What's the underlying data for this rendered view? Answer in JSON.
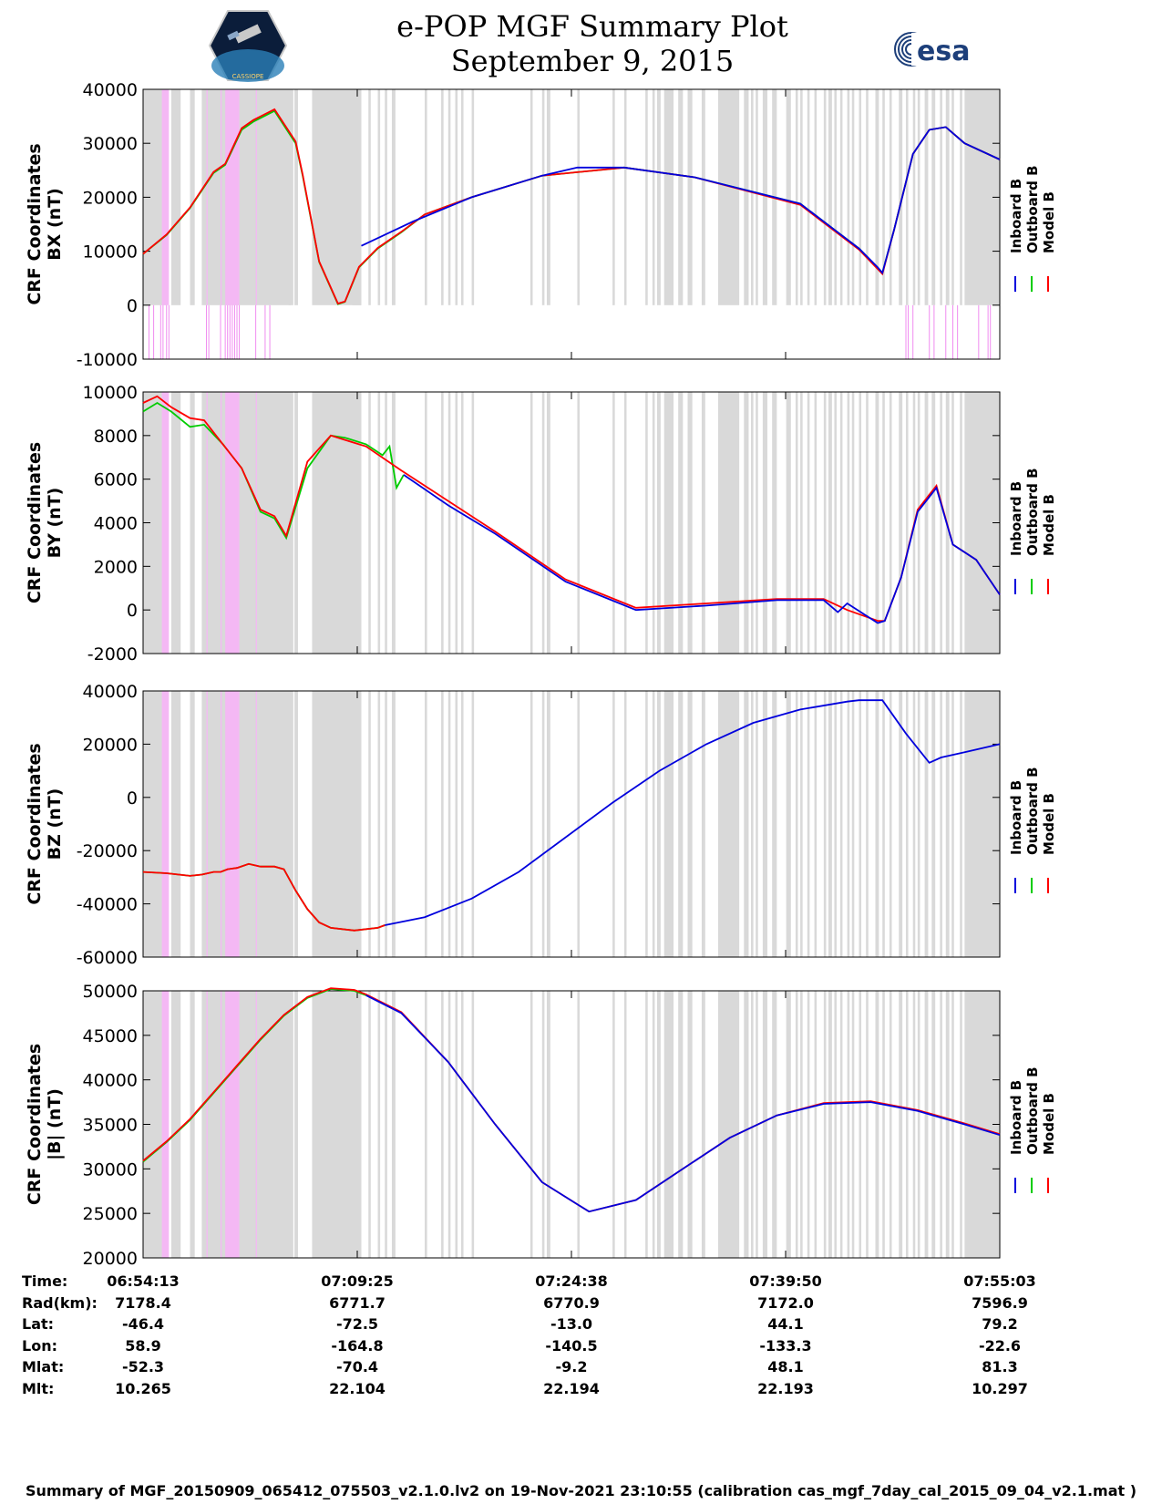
{
  "header": {
    "title": "e-POP MGF Summary Plot",
    "date": "September 9, 2015",
    "logo_left_text": "CASSIOPE",
    "logo_right_text": "esa"
  },
  "colors": {
    "inboard": "#0000dd",
    "outboard": "#00cc00",
    "model": "#ff0000",
    "gap_shade": "#d9d9d9",
    "flag_shade": "#f4b8f4"
  },
  "legend": [
    "Inboard B",
    "Outboard B",
    "Model B"
  ],
  "chart_data": [
    {
      "type": "line",
      "ylabel_line1": "CRF Coordinates",
      "ylabel_line2": "BX (nT)",
      "ylim": [
        -10000,
        40000
      ],
      "yticks": [
        40000,
        30000,
        20000,
        10000,
        0,
        -10000
      ],
      "xlim": [
        0,
        3650
      ],
      "x_unit": "seconds after 06:54:13",
      "series": [
        {
          "name": "Inboard B",
          "x": [
            930,
            1150,
            1400,
            1700,
            1850,
            2050,
            2350,
            2800,
            3050,
            3130,
            3150,
            3200,
            3280,
            3350,
            3420,
            3500,
            3650
          ],
          "values": [
            11000,
            15500,
            20000,
            24000,
            25500,
            25500,
            23700,
            18800,
            10500,
            7000,
            6000,
            14000,
            28000,
            32500,
            33000,
            30000,
            27000
          ]
        },
        {
          "name": "Outboard B",
          "x": [
            0,
            100,
            200,
            300,
            350,
            420,
            470,
            560,
            650,
            680,
            750,
            830,
            860,
            920,
            1000,
            1100,
            1200,
            1400,
            1700,
            2050,
            2350,
            2800,
            3050,
            3150,
            3200,
            3280,
            3350,
            3420,
            3500,
            3650
          ],
          "values": [
            9500,
            13000,
            18000,
            24500,
            26000,
            32500,
            34000,
            36000,
            30000,
            24000,
            8000,
            200,
            600,
            7000,
            10500,
            13500,
            16800,
            20000,
            24000,
            25500,
            23700,
            18800,
            10500,
            6000,
            14000,
            28000,
            32500,
            33000,
            30000,
            27000
          ]
        },
        {
          "name": "Model B",
          "x": [
            0,
            100,
            200,
            300,
            350,
            420,
            470,
            560,
            650,
            680,
            750,
            830,
            860,
            920,
            1000,
            1100,
            1200,
            1400,
            1700,
            2050,
            2350,
            2800,
            3050,
            3150,
            3200,
            3280,
            3350,
            3420,
            3500,
            3650
          ],
          "values": [
            9500,
            13100,
            18100,
            24700,
            26200,
            32800,
            34300,
            36300,
            30300,
            24200,
            8100,
            300,
            700,
            7100,
            10600,
            13600,
            16800,
            20000,
            24000,
            25500,
            23700,
            18600,
            10300,
            5800,
            14000,
            28000,
            32500,
            33000,
            30000,
            27000
          ]
        }
      ]
    },
    {
      "type": "line",
      "ylabel_line1": "CRF Coordinates",
      "ylabel_line2": "BY (nT)",
      "ylim": [
        -2000,
        10000
      ],
      "yticks": [
        10000,
        8000,
        6000,
        4000,
        2000,
        0,
        -2000
      ],
      "xlim": [
        0,
        3650
      ],
      "series": [
        {
          "name": "Inboard B",
          "x": [
            1110,
            1300,
            1500,
            1800,
            2100,
            2400,
            2700,
            2900,
            2960,
            3000,
            3130,
            3160,
            3230,
            3300,
            3380,
            3450,
            3550,
            3650
          ],
          "values": [
            6200,
            4800,
            3500,
            1300,
            0,
            200,
            450,
            450,
            -100,
            300,
            -600,
            -500,
            1500,
            4500,
            5600,
            3000,
            2300,
            700
          ]
        },
        {
          "name": "Outboard B",
          "x": [
            0,
            60,
            120,
            200,
            260,
            340,
            420,
            500,
            560,
            610,
            700,
            800,
            860,
            950,
            1020,
            1050,
            1080,
            1110
          ],
          "values": [
            9100,
            9500,
            9100,
            8400,
            8500,
            7600,
            6500,
            4500,
            4200,
            3300,
            6500,
            8000,
            7900,
            7600,
            7100,
            7500,
            5600,
            6200
          ]
        },
        {
          "name": "Model B",
          "x": [
            0,
            60,
            120,
            200,
            260,
            340,
            420,
            500,
            560,
            610,
            700,
            800,
            860,
            950,
            1100,
            1300,
            1500,
            1800,
            2100,
            2400,
            2700,
            2900,
            3000,
            3130,
            3160,
            3230,
            3300,
            3380,
            3450,
            3550,
            3650
          ],
          "values": [
            9500,
            9800,
            9300,
            8800,
            8700,
            7600,
            6500,
            4600,
            4300,
            3400,
            6800,
            8000,
            7800,
            7500,
            6400,
            5000,
            3600,
            1400,
            100,
            300,
            500,
            500,
            0,
            -500,
            -500,
            1500,
            4600,
            5700,
            3000,
            2300,
            700
          ]
        }
      ]
    },
    {
      "type": "line",
      "ylabel_line1": "CRF Coordinates",
      "ylabel_line2": "BZ (nT)",
      "ylim": [
        -60000,
        40000
      ],
      "yticks": [
        40000,
        20000,
        0,
        -20000,
        -40000,
        -60000
      ],
      "xlim": [
        0,
        3650
      ],
      "series": [
        {
          "name": "Inboard B",
          "x": [
            1030,
            1200,
            1400,
            1600,
            1800,
            2000,
            2200,
            2400,
            2600,
            2800,
            3000,
            3050,
            3150,
            3250,
            3350,
            3400,
            3500,
            3650
          ],
          "values": [
            -48000,
            -45000,
            -38000,
            -28000,
            -15000,
            -2000,
            10000,
            20000,
            28000,
            33000,
            36000,
            36500,
            36500,
            24000,
            13000,
            15000,
            17000,
            20000
          ]
        },
        {
          "name": "Outboard B",
          "x": [
            0,
            100,
            200,
            250,
            300,
            330,
            360,
            400,
            450,
            500,
            560,
            600,
            650,
            700,
            750,
            800,
            900,
            1000,
            1030
          ],
          "values": [
            -28000,
            -28500,
            -29500,
            -29000,
            -28000,
            -28000,
            -27000,
            -26500,
            -25000,
            -26000,
            -26000,
            -27000,
            -35000,
            -42000,
            -47000,
            -49000,
            -50000,
            -49000,
            -48000
          ]
        },
        {
          "name": "Model B",
          "x": [
            0,
            100,
            200,
            250,
            300,
            330,
            360,
            400,
            450,
            500,
            560,
            600,
            650,
            700,
            750,
            800,
            900,
            1000,
            1030
          ],
          "values": [
            -28000,
            -28500,
            -29500,
            -29000,
            -28000,
            -28000,
            -27000,
            -26500,
            -25000,
            -26000,
            -26000,
            -27000,
            -35000,
            -42000,
            -47000,
            -49000,
            -50000,
            -49000,
            -48000
          ]
        }
      ]
    },
    {
      "type": "line",
      "ylabel_line1": "CRF Coordinates",
      "ylabel_line2": "|B| (nT)",
      "ylim": [
        20000,
        50000
      ],
      "yticks": [
        50000,
        45000,
        40000,
        35000,
        30000,
        25000,
        20000
      ],
      "xlim": [
        0,
        3650
      ],
      "series": [
        {
          "name": "Inboard B",
          "x": [
            950,
            1100,
            1300,
            1500,
            1700,
            1900,
            2100,
            2300,
            2500,
            2700,
            2900,
            3100,
            3300,
            3500,
            3650
          ],
          "values": [
            49500,
            47500,
            42000,
            35000,
            28500,
            25200,
            26500,
            30000,
            33500,
            36000,
            37300,
            37500,
            36500,
            35000,
            33800
          ]
        },
        {
          "name": "Outboard B",
          "x": [
            0,
            100,
            200,
            300,
            400,
            500,
            600,
            700,
            800,
            900,
            950
          ],
          "values": [
            30800,
            33000,
            35500,
            38500,
            41500,
            44500,
            47200,
            49200,
            50200,
            50000,
            49500
          ]
        },
        {
          "name": "Model B",
          "x": [
            0,
            100,
            200,
            300,
            400,
            500,
            600,
            700,
            800,
            900,
            950,
            1100,
            1300,
            1500,
            1700,
            1900,
            2100,
            2300,
            2500,
            2700,
            2900,
            3100,
            3300,
            3500,
            3650
          ],
          "values": [
            30900,
            33100,
            35600,
            38600,
            41600,
            44600,
            47300,
            49300,
            50300,
            50100,
            49600,
            47600,
            42000,
            35000,
            28500,
            25200,
            26500,
            30000,
            33500,
            36000,
            37400,
            37600,
            36600,
            35100,
            33900
          ]
        }
      ]
    }
  ],
  "gaps": [
    [
      0,
      100
    ],
    [
      120,
      160
    ],
    [
      200,
      220
    ],
    [
      250,
      630
    ],
    [
      620,
      640
    ],
    [
      645,
      660
    ],
    [
      720,
      930
    ],
    [
      890,
      930
    ],
    [
      960,
      970
    ],
    [
      1000,
      1010
    ],
    [
      1030,
      1040
    ],
    [
      1060,
      1075
    ],
    [
      1200,
      1210
    ],
    [
      1270,
      1280
    ],
    [
      1300,
      1310
    ],
    [
      1330,
      1340
    ],
    [
      1355,
      1365
    ],
    [
      1400,
      1410
    ],
    [
      1650,
      1660
    ],
    [
      1700,
      1710
    ],
    [
      1720,
      1735
    ],
    [
      1850,
      1860
    ],
    [
      2000,
      2010
    ],
    [
      2050,
      2060
    ],
    [
      2140,
      2150
    ],
    [
      2170,
      2180
    ],
    [
      2190,
      2205
    ],
    [
      2220,
      2260
    ],
    [
      2280,
      2300
    ],
    [
      2320,
      2340
    ],
    [
      2380,
      2395
    ],
    [
      2450,
      2540
    ],
    [
      2560,
      2580
    ],
    [
      2590,
      2600
    ],
    [
      2610,
      2620
    ],
    [
      2640,
      2660
    ],
    [
      2680,
      2700
    ],
    [
      2740,
      2760
    ],
    [
      2780,
      2790
    ],
    [
      2800,
      2810
    ],
    [
      2830,
      2840
    ],
    [
      2860,
      2870
    ],
    [
      2900,
      2910
    ],
    [
      2920,
      2935
    ],
    [
      2945,
      2955
    ],
    [
      2970,
      2980
    ],
    [
      3000,
      3010
    ],
    [
      3020,
      3030
    ],
    [
      3050,
      3060
    ],
    [
      3080,
      3090
    ],
    [
      3120,
      3135
    ],
    [
      3150,
      3160
    ],
    [
      3180,
      3190
    ],
    [
      3220,
      3235
    ],
    [
      3250,
      3260
    ],
    [
      3280,
      3290
    ],
    [
      3300,
      3310
    ],
    [
      3330,
      3345
    ],
    [
      3360,
      3375
    ],
    [
      3395,
      3405
    ],
    [
      3420,
      3435
    ],
    [
      3445,
      3455
    ],
    [
      3480,
      3490
    ],
    [
      3500,
      3650
    ]
  ],
  "flags": [
    [
      80,
      110
    ],
    [
      270,
      275
    ],
    [
      330,
      335
    ],
    [
      350,
      410
    ],
    [
      480,
      485
    ]
  ],
  "bx_flag_ticks": [
    25,
    45,
    75,
    85,
    100,
    110,
    270,
    280,
    330,
    350,
    360,
    370,
    380,
    390,
    400,
    410,
    480,
    520,
    540,
    3250,
    3260,
    3280,
    3350,
    3370,
    3420,
    3450,
    3470,
    3560,
    3600,
    3610
  ],
  "xaxis": {
    "tick_times": [
      "06:54:13",
      "07:09:25",
      "07:24:38",
      "07:39:50",
      "07:55:03"
    ]
  },
  "ephemeris": {
    "labels": [
      "Time:",
      "Rad(km):",
      "Lat:",
      "Lon:",
      "Mlat:",
      "Mlt:"
    ],
    "columns": [
      {
        "Time": "06:54:13",
        "Rad": "7178.4",
        "Lat": "-46.4",
        "Lon": "58.9",
        "Mlat": "-52.3",
        "Mlt": "10.265"
      },
      {
        "Time": "07:09:25",
        "Rad": "6771.7",
        "Lat": "-72.5",
        "Lon": "-164.8",
        "Mlat": "-70.4",
        "Mlt": "22.104"
      },
      {
        "Time": "07:24:38",
        "Rad": "6770.9",
        "Lat": "-13.0",
        "Lon": "-140.5",
        "Mlat": "-9.2",
        "Mlt": "22.194"
      },
      {
        "Time": "07:39:50",
        "Rad": "7172.0",
        "Lat": "44.1",
        "Lon": "-133.3",
        "Mlat": "48.1",
        "Mlt": "22.193"
      },
      {
        "Time": "07:55:03",
        "Rad": "7596.9",
        "Lat": "79.2",
        "Lon": "-22.6",
        "Mlat": "81.3",
        "Mlt": "10.297"
      }
    ]
  },
  "footer": "Summary of MGF_20150909_065412_075503_v2.1.0.lv2 on 19-Nov-2021 23:10:55 (calibration cas_mgf_7day_cal_2015_09_04_v2.1.mat )"
}
